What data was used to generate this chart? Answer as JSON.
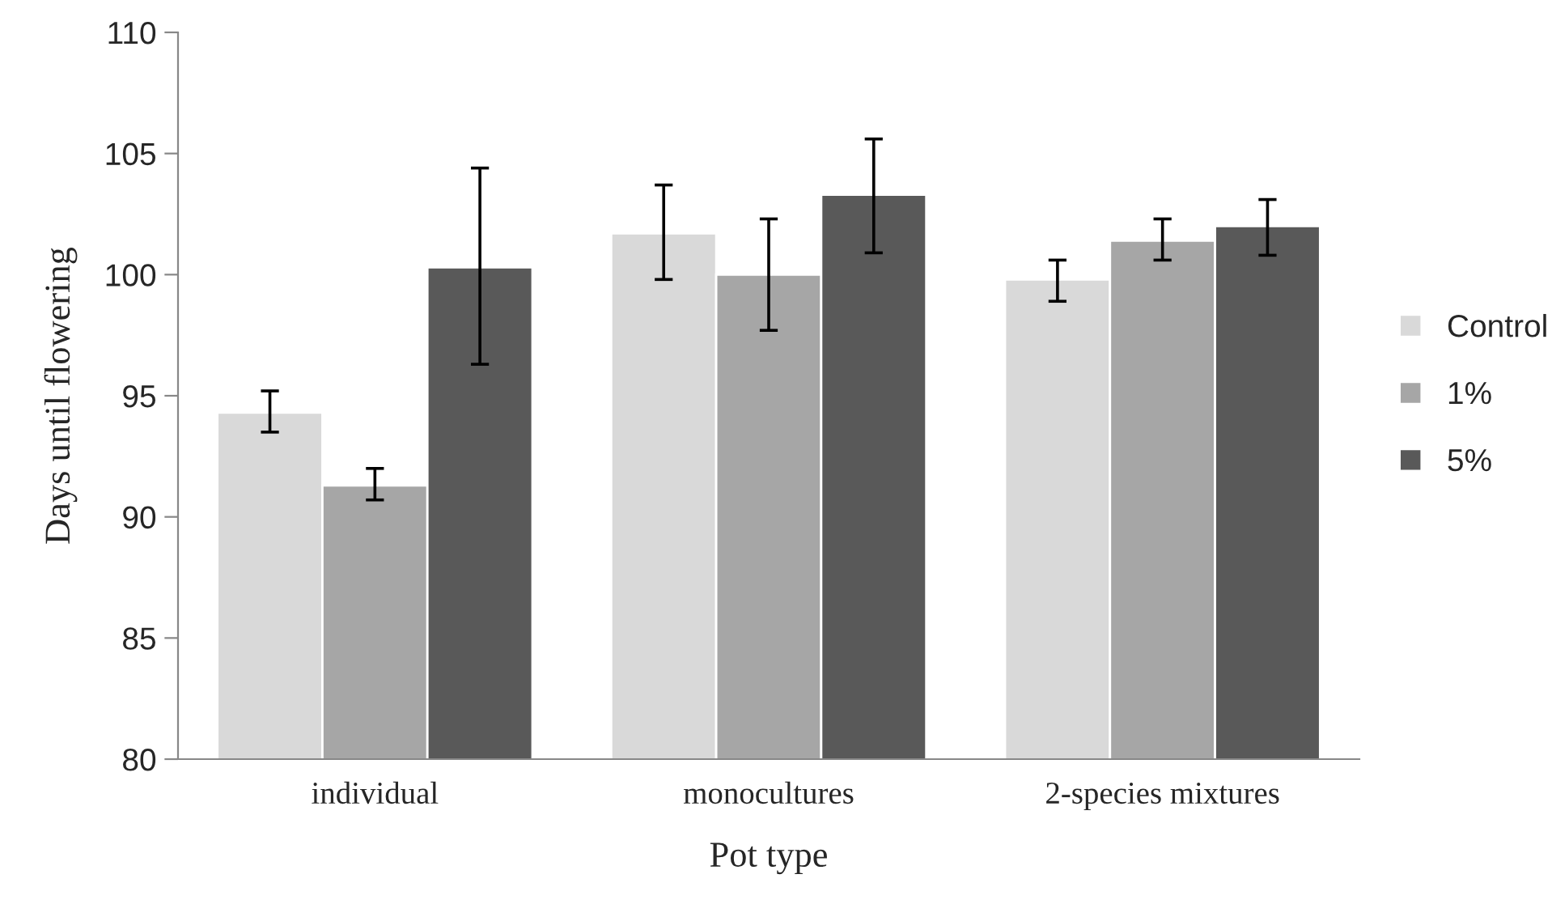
{
  "chart_data": {
    "type": "bar",
    "xlabel": "Pot type",
    "ylabel": "Days until flowering",
    "categories": [
      "individual",
      "monocultures",
      "2-species mixtures"
    ],
    "series": [
      {
        "name": "Control",
        "color": "#d9d9d9",
        "values": [
          94.3,
          101.7,
          99.8
        ],
        "errors": [
          [
            93.5,
            95.2
          ],
          [
            99.8,
            103.7
          ],
          [
            98.9,
            100.6
          ]
        ]
      },
      {
        "name": "1%",
        "color": "#a6a6a6",
        "values": [
          91.3,
          100.0,
          101.4
        ],
        "errors": [
          [
            90.7,
            92.0
          ],
          [
            97.7,
            102.3
          ],
          [
            100.6,
            102.3
          ]
        ]
      },
      {
        "name": "5%",
        "color": "#595959",
        "values": [
          100.3,
          103.3,
          102.0
        ],
        "errors": [
          [
            96.3,
            104.4
          ],
          [
            100.9,
            105.6
          ],
          [
            100.8,
            103.1
          ]
        ]
      }
    ],
    "ylim": [
      80,
      110
    ],
    "yticks": [
      80,
      85,
      90,
      95,
      100,
      105,
      110
    ],
    "grid": false,
    "legend": "right"
  }
}
